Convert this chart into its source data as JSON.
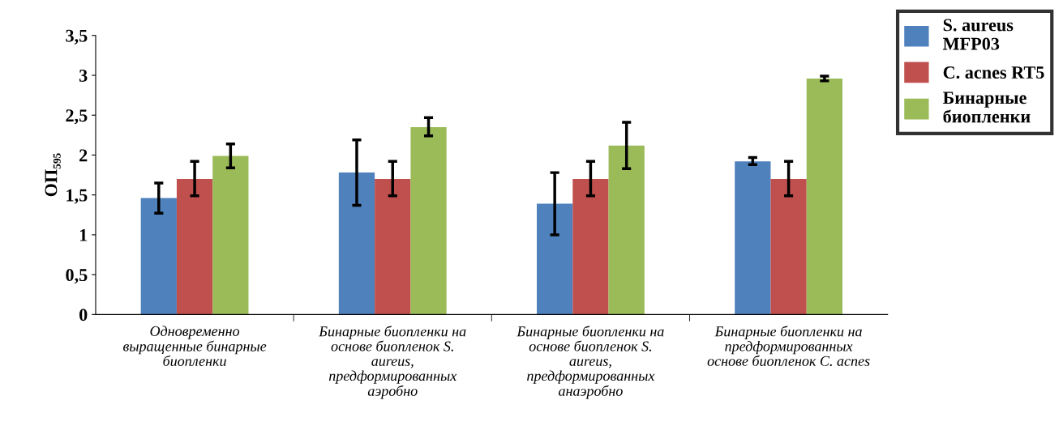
{
  "chart_data": {
    "type": "bar",
    "ylabel": "ОП₅₉₅",
    "categories": [
      "Одновременно выращенные бинарные биопленки",
      "Бинарные биопленки на основе биопленок S. aureus, предформированных аэробно",
      "Бинарные биопленки на основе биопленок S. aureus, предформированных анаэробно",
      "Бинарные биопленки на предформированных основе биопленок C. acnes"
    ],
    "series": [
      {
        "name": "S. aureus MFP03",
        "color": "#4f81bd",
        "values": [
          1.46,
          1.78,
          1.39,
          1.92
        ],
        "errors": [
          [
            1.27,
            1.65
          ],
          [
            1.37,
            2.19
          ],
          [
            1.0,
            1.78
          ],
          [
            1.88,
            1.97
          ]
        ]
      },
      {
        "name": "C. acnes RT5",
        "color": "#c0504d",
        "values": [
          1.7,
          1.7,
          1.7,
          1.7
        ],
        "errors": [
          [
            1.49,
            1.92
          ],
          [
            1.49,
            1.92
          ],
          [
            1.49,
            1.92
          ],
          [
            1.49,
            1.92
          ]
        ]
      },
      {
        "name": "Бинарные биопленки",
        "color": "#9bbb59",
        "values": [
          1.99,
          2.35,
          2.12,
          2.96
        ],
        "errors": [
          [
            1.84,
            2.14
          ],
          [
            2.24,
            2.47
          ],
          [
            1.83,
            2.41
          ],
          [
            2.93,
            2.99
          ]
        ]
      }
    ],
    "ylim": [
      0,
      3.5
    ],
    "yticks": [
      0,
      {
        "value": 0.5,
        "label": "0,5"
      },
      1,
      {
        "value": 1.5,
        "label": "1,5"
      },
      2,
      {
        "value": 2.5,
        "label": "2,5"
      },
      3,
      {
        "value": 3.5,
        "label": "3,5"
      }
    ],
    "grid": false,
    "legend": "top right"
  }
}
